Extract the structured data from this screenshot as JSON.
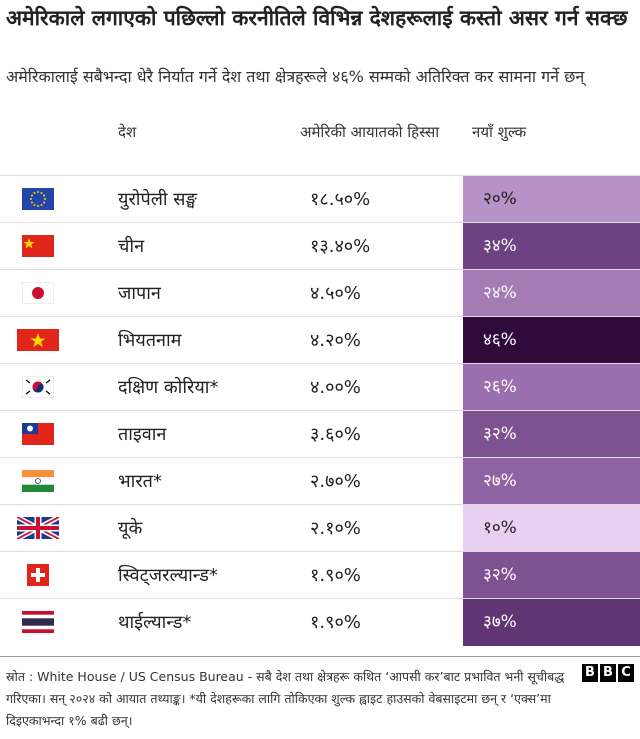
{
  "header": {
    "title": "अमेरिकाले लगाएको पछिल्लो करनीतिले विभिन्न देशहरूलाई कस्तो असर गर्न सक्छ",
    "subtitle": "अमेरिकालाई सबैभन्दा धेरै निर्यात गर्ने देश तथा क्षेत्रहरूले ४६% सम्मको अतिरिक्त कर सामना गर्ने छन्"
  },
  "table": {
    "columns": [
      "देश",
      "अमेरिकी आयातको हिस्सा",
      "नयाँ शुल्क"
    ],
    "rows": [
      [
        "युरोपेली सङ्घ",
        "१८.५०%",
        "२०%"
      ],
      [
        "चीन",
        "१३.४०%",
        "३४%"
      ],
      [
        "जापान",
        "४.५०%",
        "२४%"
      ],
      [
        "भियतनाम",
        "४.२०%",
        "४६%"
      ],
      [
        "दक्षिण कोरिया*",
        "४.००%",
        "२६%"
      ],
      [
        "ताइवान",
        "३.६०%",
        "३२%"
      ],
      [
        "भारत*",
        "२.७०%",
        "२७%"
      ],
      [
        "यूके",
        "२.१०%",
        "१०%"
      ],
      [
        "स्विट्जरल्यान्ड*",
        "१.९०%",
        "३२%"
      ],
      [
        "थाईल्यान्ड*",
        "१.९०%",
        "३७%"
      ]
    ],
    "tariff_colors": [
      "#b692c6",
      "#6e4182",
      "#a57bb6",
      "#2e0b3b",
      "#9b6fad",
      "#7e5191",
      "#8e63a1",
      "#e9cff2",
      "#7e5191",
      "#613573"
    ]
  },
  "footer": {
    "source": "स्रोत : White House / US Census Bureau - सबै देश तथा क्षेत्रहरू कथित ‘आपसी कर’बाट प्रभावित भनी सूचीबद्ध गरिएका। सन् २०२४ को आयात तथ्याङ्क। *यी देशहरूका लागि तोकिएका शुल्क ह्वाइट हाउसको वेबसाइटमा छन् र ‘एक्स’मा दिइएकाभन्दा १% बढी छन्।",
    "logo": [
      "B",
      "B",
      "C"
    ]
  }
}
